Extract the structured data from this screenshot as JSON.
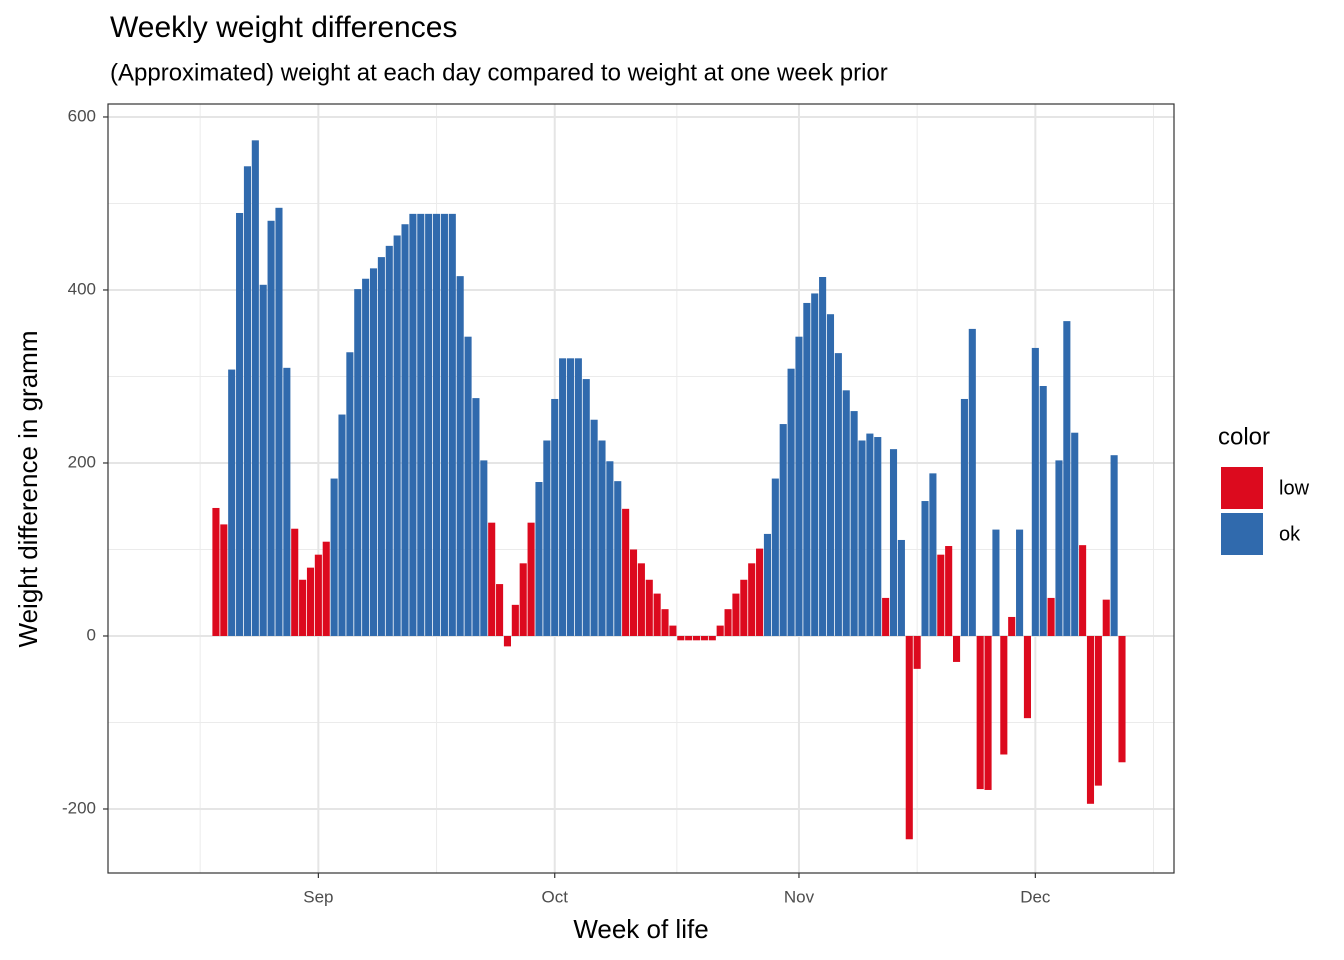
{
  "chart_data": {
    "type": "bar",
    "title": "Weekly weight differences",
    "subtitle": "(Approximated) weight at each day compared to weight at one week prior",
    "x_label": "Week of life",
    "y_label": "Weight difference in gramm",
    "legend_title": "color",
    "legend": "right",
    "grid": true,
    "categories": [
      null,
      null,
      null,
      null,
      null,
      null,
      null,
      null,
      null,
      null,
      null,
      null,
      null,
      null,
      null,
      null,
      null,
      null,
      null,
      null,
      null,
      null,
      null,
      null,
      null,
      null,
      null,
      null,
      null,
      null,
      null,
      null,
      null,
      null,
      null,
      null,
      null,
      null,
      null,
      null,
      null,
      null,
      null,
      null,
      null,
      null,
      null,
      null,
      null,
      null,
      null,
      null,
      null,
      null,
      null,
      null,
      null,
      null,
      null,
      null,
      null,
      null,
      null,
      null,
      null,
      null,
      null,
      null,
      null,
      null,
      null,
      null,
      null,
      null,
      null,
      null,
      null,
      null,
      null,
      null,
      null,
      null,
      null,
      null,
      null,
      null,
      null,
      null,
      null,
      null,
      null,
      null,
      null,
      null,
      null,
      null,
      null,
      null,
      null,
      null,
      null,
      null,
      null,
      null,
      null,
      null,
      null,
      null,
      null,
      null,
      null,
      null,
      null,
      null,
      null,
      null
    ],
    "xlim": [
      -13.7,
      121.6
    ],
    "xticks": [
      {
        "value": 13,
        "label": "Sep"
      },
      {
        "value": 43,
        "label": "Oct"
      },
      {
        "value": 74,
        "label": "Nov"
      },
      {
        "value": 104,
        "label": "Dec"
      }
    ],
    "ylim": [
      -274,
      615
    ],
    "yticks": [
      -200,
      0,
      200,
      400,
      600
    ],
    "series": [
      {
        "name": "low",
        "color": "#dc0a1e",
        "values": [
          148,
          129,
          null,
          null,
          null,
          null,
          null,
          null,
          null,
          null,
          124,
          65,
          79,
          94,
          109,
          null,
          null,
          null,
          null,
          null,
          null,
          null,
          null,
          null,
          null,
          null,
          null,
          null,
          null,
          null,
          null,
          null,
          null,
          null,
          null,
          131,
          60,
          -12,
          36,
          84,
          131,
          null,
          null,
          null,
          null,
          null,
          null,
          null,
          null,
          null,
          null,
          null,
          147,
          100,
          84,
          65,
          49,
          31,
          12,
          -5,
          -5,
          -5,
          -5,
          -5,
          12,
          31,
          49,
          65,
          84,
          101,
          null,
          null,
          null,
          null,
          null,
          null,
          null,
          null,
          null,
          null,
          null,
          null,
          null,
          null,
          null,
          44,
          null,
          null,
          -235,
          -38,
          null,
          null,
          94,
          104,
          -30,
          null,
          null,
          -177,
          -178,
          null,
          -137,
          22,
          null,
          -95,
          null,
          null,
          44,
          null,
          null,
          null,
          105,
          -194,
          -173,
          42,
          null,
          -146
        ]
      },
      {
        "name": "ok",
        "color": "#306aad",
        "values": [
          null,
          null,
          308,
          489,
          543,
          573,
          406,
          480,
          495,
          310,
          null,
          null,
          null,
          null,
          null,
          182,
          256,
          328,
          401,
          413,
          425,
          438,
          451,
          463,
          476,
          488,
          488,
          488,
          488,
          488,
          488,
          416,
          346,
          275,
          203,
          null,
          null,
          null,
          null,
          null,
          null,
          178,
          226,
          274,
          321,
          321,
          321,
          297,
          250,
          226,
          202,
          179,
          null,
          null,
          null,
          null,
          null,
          null,
          null,
          null,
          null,
          null,
          null,
          null,
          null,
          null,
          null,
          null,
          null,
          null,
          118,
          182,
          245,
          309,
          346,
          385,
          396,
          415,
          372,
          327,
          284,
          260,
          226,
          234,
          230,
          null,
          216,
          111,
          null,
          null,
          156,
          188,
          null,
          null,
          null,
          274,
          355,
          null,
          null,
          123,
          null,
          null,
          123,
          null,
          333,
          289,
          null,
          203,
          364,
          235,
          null,
          null,
          null,
          null,
          209,
          null
        ]
      }
    ]
  }
}
